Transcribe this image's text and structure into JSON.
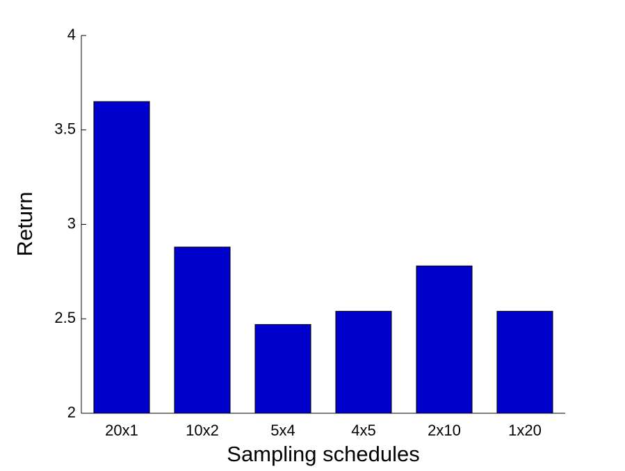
{
  "chart_data": {
    "type": "bar",
    "xlabel": "Sampling schedules",
    "ylabel": "Return",
    "categories": [
      "20x1",
      "10x2",
      "5x4",
      "4x5",
      "2x10",
      "1x20"
    ],
    "values": [
      3.65,
      2.88,
      2.47,
      2.54,
      2.78,
      2.54
    ],
    "color": "#0000cc",
    "ylim": [
      2,
      4
    ],
    "yticks": [
      2,
      2.5,
      3,
      3.5,
      4
    ],
    "grid": false
  }
}
